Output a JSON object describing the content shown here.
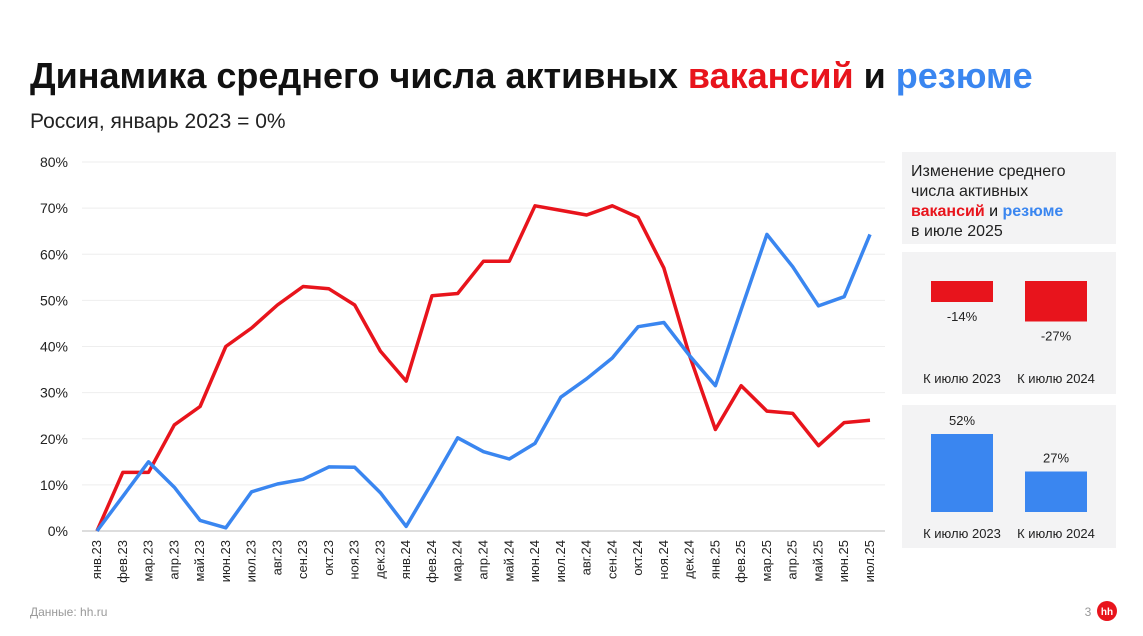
{
  "header": {
    "title": [
      {
        "text": "Динамика среднего числа активных ",
        "color": "#111111"
      },
      {
        "text": "вакансий",
        "color": "#e8141c"
      },
      {
        "text": " и ",
        "color": "#111111"
      },
      {
        "text": "резюме",
        "color": "#3a86f0"
      }
    ],
    "subtitle": "Россия, январь 2023 = 0%"
  },
  "panel": {
    "caption": [
      "Изменение среднего",
      "числа активных",
      [
        {
          "text": "вакансий",
          "color": "#e8141c"
        },
        {
          "text": " и ",
          "color": "#111111"
        },
        {
          "text": "резюме",
          "color": "#3a86f0"
        }
      ],
      "в июле 2025"
    ]
  },
  "footer": {
    "source": "Данные: hh.ru",
    "page": "3",
    "logo": "hh"
  },
  "chart_data": [
    {
      "type": "line",
      "categories": [
        "янв.23",
        "фев.23",
        "мар.23",
        "апр.23",
        "май.23",
        "июн.23",
        "июл.23",
        "авг.23",
        "сен.23",
        "окт.23",
        "ноя.23",
        "дек.23",
        "янв.24",
        "фев.24",
        "мар.24",
        "апр.24",
        "май.24",
        "июн.24",
        "июл.24",
        "авг.24",
        "сен.24",
        "окт.24",
        "ноя.24",
        "дек.24",
        "янв.25",
        "фев.25",
        "мар.25",
        "апр.25",
        "май.25",
        "июн.25",
        "июл.25"
      ],
      "series": [
        {
          "color": "#e8141c",
          "values": [
            0,
            12.7,
            12.7,
            23,
            27,
            40,
            44,
            49,
            53,
            52.5,
            49,
            39,
            32.5,
            51,
            51.5,
            58.5,
            58.5,
            70.5,
            69.5,
            68.5,
            70.5,
            68,
            57,
            38,
            22,
            31.5,
            26,
            25.5,
            18.5,
            23.5,
            24
          ]
        },
        {
          "color": "#3a86f0",
          "values": [
            0,
            7.5,
            15,
            9.5,
            2.3,
            0.7,
            8.5,
            10.2,
            11.2,
            13.9,
            13.8,
            8.3,
            1,
            10.5,
            20.2,
            17.2,
            15.6,
            19,
            29,
            33,
            37.5,
            44.3,
            45.2,
            38,
            31.5,
            48,
            64.3,
            57.3,
            48.8,
            50.8,
            64.3
          ]
        }
      ],
      "ylim": [
        0,
        80
      ],
      "yticks": [
        {
          "value": 0,
          "label": "0%"
        },
        {
          "value": 10,
          "label": "10%"
        },
        {
          "value": 20,
          "label": "20%"
        },
        {
          "value": 30,
          "label": "30%"
        },
        {
          "value": 40,
          "label": "40%"
        },
        {
          "value": 50,
          "label": "50%"
        },
        {
          "value": 60,
          "label": "60%"
        },
        {
          "value": 70,
          "label": "70%"
        },
        {
          "value": 80,
          "label": "80%"
        }
      ],
      "grid": true
    },
    {
      "type": "bar",
      "categories": [
        "К июлю 2023",
        "К июлю 2024"
      ],
      "values": [
        -14,
        -27
      ],
      "value_labels": [
        "-14%",
        "-27%"
      ],
      "color": "#e8141c"
    },
    {
      "type": "bar",
      "categories": [
        "К июлю 2023",
        "К июлю 2024"
      ],
      "values": [
        52,
        27
      ],
      "value_labels": [
        "52%",
        "27%"
      ],
      "color": "#3a86f0"
    }
  ]
}
